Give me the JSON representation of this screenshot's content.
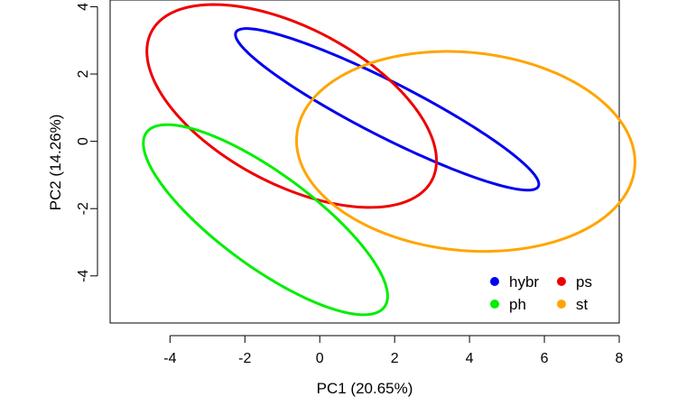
{
  "chart_data": {
    "type": "scatter",
    "title": "",
    "xlabel": "PC1 (20.65%)",
    "ylabel": "PC2 (14.26%)",
    "xlim": [
      -5.6,
      8.0
    ],
    "ylim": [
      -5.4,
      4.2
    ],
    "x_ticks": [
      -4,
      -2,
      0,
      2,
      4,
      6,
      8
    ],
    "y_ticks": [
      -4,
      -2,
      0,
      2,
      4
    ],
    "x_tick_labels": [
      "-4",
      "-2",
      "0",
      "2",
      "4",
      "6",
      "8"
    ],
    "y_tick_labels": [
      "-4",
      "-2",
      "0",
      "2",
      "4"
    ],
    "grid": false,
    "legend_position": "bottom-right",
    "series": [
      {
        "name": "hybr",
        "color": "#0000ee",
        "ellipse": {
          "center": [
            1.8,
            0.95
          ],
          "major_end": [
            -2.2,
            3.0
          ],
          "minor_end": [
            2.45,
            -0.3
          ]
        }
      },
      {
        "name": "ps",
        "color": "#ee0000",
        "ellipse": {
          "center": [
            -0.75,
            1.05
          ],
          "major_end": [
            -2.5,
            4.05
          ],
          "minor_end": [
            2.7,
            0.75
          ]
        }
      },
      {
        "name": "ph",
        "color": "#00ee00",
        "ellipse": {
          "center": [
            -1.45,
            -2.33
          ],
          "major_end": [
            -4.6,
            0.3
          ],
          "minor_end": [
            -0.6,
            -1.3
          ]
        }
      },
      {
        "name": "st",
        "color": "#ffa500",
        "ellipse": {
          "center": [
            3.9,
            -0.3
          ],
          "major_end": [
            -0.62,
            0.05
          ],
          "minor_end": [
            3.86,
            -3.25
          ]
        }
      }
    ]
  }
}
